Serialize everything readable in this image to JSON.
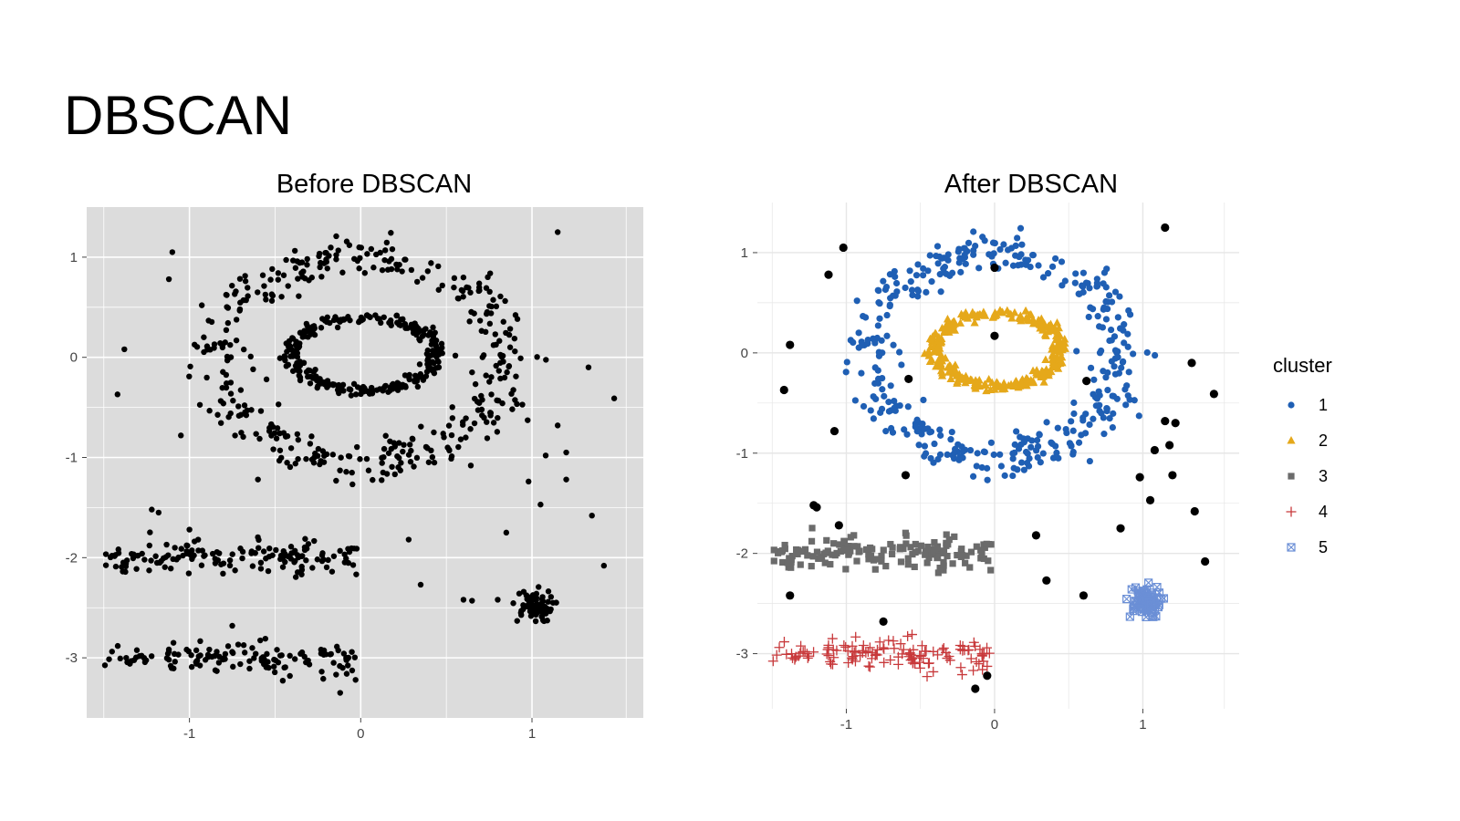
{
  "slide": {
    "title": "DBSCAN"
  },
  "chart_data": [
    {
      "type": "scatter",
      "title": "Before DBSCAN",
      "xlabel": "",
      "ylabel": "",
      "xlim": [
        -1.6,
        1.65
      ],
      "ylim": [
        -3.6,
        1.5
      ],
      "xticks": [
        -1,
        0,
        1
      ],
      "yticks": [
        1,
        0,
        -1,
        -2,
        -3
      ],
      "tick_labels_x": [
        "-1",
        "0",
        "1"
      ],
      "tick_labels_y": [
        "1",
        "0",
        "-1",
        "-2",
        "-3"
      ],
      "background": "#dcdcdc",
      "grid": true,
      "grid_color": "#ffffff",
      "point_color": "#000000",
      "dataset": "Outer ring (~400 pts, radius x≈0.85, y≈1.05, center (0,0)); inner ring (~300 pts, radius x≈0.42, y≈0.38); upper bar y≈-2 for x∈[-1.5,0]; lower bar y≈-3 for x∈[-1.5,0]; compact blob near (1,-2.5); scattered noise",
      "noise_points": [
        [
          1.15,
          1.25
        ],
        [
          -1.1,
          1.05
        ],
        [
          -1.12,
          0.78
        ],
        [
          -1.38,
          0.08
        ],
        [
          -1.42,
          -0.37
        ],
        [
          -1.05,
          -0.78
        ],
        [
          -0.6,
          -1.22
        ],
        [
          -1.22,
          -1.52
        ],
        [
          -1.18,
          -1.55
        ],
        [
          -1.0,
          -1.72
        ],
        [
          -0.75,
          -2.68
        ],
        [
          0.28,
          -1.82
        ],
        [
          0.35,
          -2.27
        ],
        [
          -0.12,
          -3.35
        ],
        [
          0.2,
          -0.28
        ],
        [
          -0.55,
          -0.22
        ],
        [
          0.98,
          -1.24
        ],
        [
          1.05,
          -1.47
        ],
        [
          1.2,
          -1.22
        ],
        [
          1.33,
          -0.1
        ],
        [
          1.48,
          -0.41
        ],
        [
          1.35,
          -1.58
        ],
        [
          1.42,
          -2.08
        ],
        [
          0.85,
          -1.75
        ],
        [
          -0.03,
          -3.22
        ],
        [
          1.15,
          -0.68
        ],
        [
          1.2,
          -0.95
        ],
        [
          0.6,
          -2.42
        ],
        [
          0.65,
          -2.43
        ],
        [
          0.8,
          -2.42
        ],
        [
          1.08,
          -0.98
        ]
      ]
    },
    {
      "type": "scatter",
      "title": "After DBSCAN",
      "xlabel": "",
      "ylabel": "",
      "xlim": [
        -1.6,
        1.65
      ],
      "ylim": [
        -3.55,
        1.5
      ],
      "xticks": [
        -1,
        0,
        1
      ],
      "yticks": [
        1,
        0,
        -1,
        -2,
        -3
      ],
      "tick_labels_x": [
        "-1",
        "0",
        "1"
      ],
      "tick_labels_y": [
        "1",
        "0",
        "-1",
        "-2",
        "-3"
      ],
      "background": "#ffffff",
      "grid": true,
      "grid_color": "#e6e6e6",
      "legend": {
        "title": "cluster",
        "position": "right",
        "entries": [
          {
            "label": "1",
            "color": "#1f5fb4",
            "shape": "circle"
          },
          {
            "label": "2",
            "color": "#e5a81a",
            "shape": "triangle"
          },
          {
            "label": "3",
            "color": "#6b6b6b",
            "shape": "square"
          },
          {
            "label": "4",
            "color": "#c8393b",
            "shape": "plus"
          },
          {
            "label": "5",
            "color": "#6b8fd6",
            "shape": "boxed-x"
          }
        ]
      },
      "series": [
        {
          "name": "1",
          "note": "outer ring"
        },
        {
          "name": "2",
          "note": "inner ring"
        },
        {
          "name": "3",
          "note": "upper bar y≈-2"
        },
        {
          "name": "4",
          "note": "lower bar y≈-3"
        },
        {
          "name": "5",
          "note": "blob near (1,-2.5)"
        }
      ],
      "noise_color": "#000000",
      "noise_points": [
        [
          1.15,
          1.25
        ],
        [
          -1.02,
          1.05
        ],
        [
          -1.12,
          0.78
        ],
        [
          -1.38,
          0.08
        ],
        [
          -1.42,
          -0.37
        ],
        [
          -1.08,
          -0.78
        ],
        [
          -0.6,
          -1.22
        ],
        [
          -1.22,
          -1.52
        ],
        [
          -1.2,
          -1.54
        ],
        [
          -1.05,
          -1.72
        ],
        [
          -0.75,
          -2.68
        ],
        [
          0.28,
          -1.82
        ],
        [
          0.35,
          -2.27
        ],
        [
          -0.13,
          -3.35
        ],
        [
          -0.05,
          -3.22
        ],
        [
          0.0,
          0.17
        ],
        [
          0.0,
          0.85
        ],
        [
          0.62,
          -0.28
        ],
        [
          -0.58,
          -0.26
        ],
        [
          0.98,
          -1.24
        ],
        [
          1.05,
          -1.47
        ],
        [
          1.2,
          -1.22
        ],
        [
          1.33,
          -0.1
        ],
        [
          1.48,
          -0.41
        ],
        [
          1.35,
          -1.58
        ],
        [
          1.42,
          -2.08
        ],
        [
          0.85,
          -1.75
        ],
        [
          -1.38,
          -2.42
        ],
        [
          0.6,
          -2.42
        ],
        [
          1.15,
          -0.68
        ],
        [
          1.22,
          -0.7
        ],
        [
          1.18,
          -0.92
        ],
        [
          1.08,
          -0.97
        ]
      ]
    }
  ]
}
